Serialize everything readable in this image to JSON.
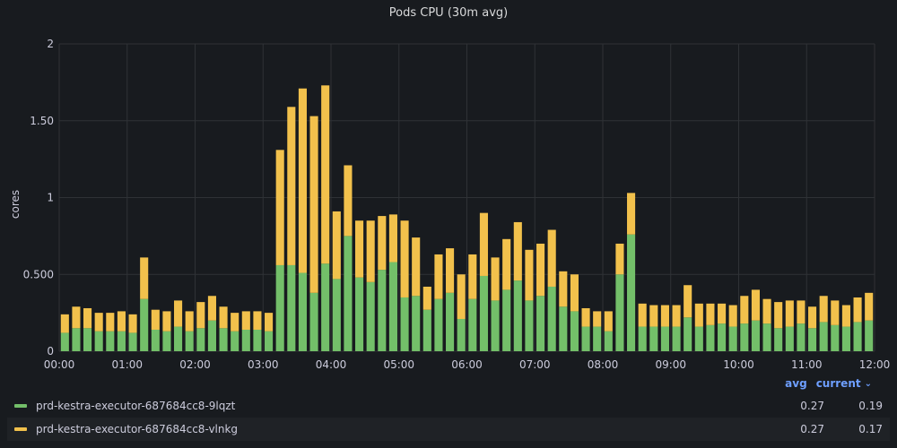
{
  "panel": {
    "title": "Pods CPU (30m avg)"
  },
  "legend": {
    "avg_header": "avg",
    "current_header": "current",
    "current_sort_icon": "chevron-down-icon",
    "rows": [
      {
        "name": "prd-kestra-executor-687684cc8-9lqzt",
        "color": "#73bf69",
        "avg": "0.27",
        "current": "0.19"
      },
      {
        "name": "prd-kestra-executor-687684cc8-vlnkg",
        "color": "#f2c14c",
        "avg": "0.27",
        "current": "0.17"
      }
    ]
  },
  "chart_data": {
    "type": "bar",
    "stacked": true,
    "title": "Pods CPU (30m avg)",
    "xlabel": "",
    "ylabel": "cores",
    "ylim": [
      0,
      2
    ],
    "xlim": [
      "00:00",
      "12:00"
    ],
    "yticks": [
      "0",
      "0.500",
      "1",
      "1.50",
      "2"
    ],
    "xticks": [
      "00:00",
      "01:00",
      "02:00",
      "03:00",
      "04:00",
      "05:00",
      "06:00",
      "07:00",
      "08:00",
      "09:00",
      "10:00",
      "11:00",
      "12:00"
    ],
    "grid": true,
    "legend_position": "bottom",
    "x": [
      "00:05",
      "00:15",
      "00:25",
      "00:35",
      "00:45",
      "00:55",
      "01:05",
      "01:15",
      "01:25",
      "01:35",
      "01:45",
      "01:55",
      "02:05",
      "02:15",
      "02:25",
      "02:35",
      "02:45",
      "02:55",
      "03:05",
      "03:15",
      "03:25",
      "03:35",
      "03:45",
      "03:55",
      "04:05",
      "04:15",
      "04:25",
      "04:35",
      "04:45",
      "04:55",
      "05:05",
      "05:15",
      "05:25",
      "05:35",
      "05:45",
      "05:55",
      "06:05",
      "06:15",
      "06:25",
      "06:35",
      "06:45",
      "06:55",
      "07:05",
      "07:15",
      "07:25",
      "07:35",
      "07:45",
      "07:55",
      "08:05",
      "08:15",
      "08:25",
      "08:35",
      "08:45",
      "08:55",
      "09:05",
      "09:15",
      "09:25",
      "09:35",
      "09:45",
      "09:55",
      "10:05",
      "10:15",
      "10:25",
      "10:35",
      "10:45",
      "10:55",
      "11:05",
      "11:15",
      "11:25",
      "11:35",
      "11:45",
      "11:55"
    ],
    "series": [
      {
        "name": "prd-kestra-executor-687684cc8-9lqzt",
        "color": "#73bf69",
        "values": [
          0.12,
          0.15,
          0.15,
          0.13,
          0.13,
          0.13,
          0.12,
          0.34,
          0.14,
          0.13,
          0.16,
          0.13,
          0.15,
          0.2,
          0.15,
          0.13,
          0.14,
          0.14,
          0.13,
          0.56,
          0.56,
          0.51,
          0.38,
          0.57,
          0.47,
          0.75,
          0.48,
          0.45,
          0.53,
          0.58,
          0.35,
          0.36,
          0.27,
          0.34,
          0.38,
          0.21,
          0.34,
          0.49,
          0.33,
          0.4,
          0.46,
          0.33,
          0.36,
          0.42,
          0.29,
          0.26,
          0.16,
          0.16,
          0.13,
          0.5,
          0.76,
          0.16,
          0.16,
          0.16,
          0.16,
          0.22,
          0.16,
          0.17,
          0.18,
          0.16,
          0.18,
          0.2,
          0.18,
          0.15,
          0.16,
          0.18,
          0.15,
          0.19,
          0.17,
          0.16,
          0.19,
          0.2
        ]
      },
      {
        "name": "prd-kestra-executor-687684cc8-vlnkg",
        "color": "#f2c14c",
        "values": [
          0.12,
          0.14,
          0.13,
          0.12,
          0.12,
          0.13,
          0.12,
          0.27,
          0.13,
          0.13,
          0.17,
          0.13,
          0.17,
          0.16,
          0.14,
          0.12,
          0.12,
          0.12,
          0.12,
          0.75,
          1.03,
          1.2,
          1.15,
          1.16,
          0.44,
          0.46,
          0.37,
          0.4,
          0.35,
          0.31,
          0.5,
          0.38,
          0.15,
          0.29,
          0.29,
          0.29,
          0.29,
          0.41,
          0.28,
          0.33,
          0.38,
          0.33,
          0.34,
          0.37,
          0.23,
          0.24,
          0.12,
          0.1,
          0.13,
          0.2,
          0.27,
          0.15,
          0.14,
          0.14,
          0.14,
          0.21,
          0.15,
          0.14,
          0.13,
          0.14,
          0.18,
          0.2,
          0.16,
          0.17,
          0.17,
          0.15,
          0.14,
          0.17,
          0.16,
          0.14,
          0.16,
          0.18
        ]
      }
    ]
  }
}
